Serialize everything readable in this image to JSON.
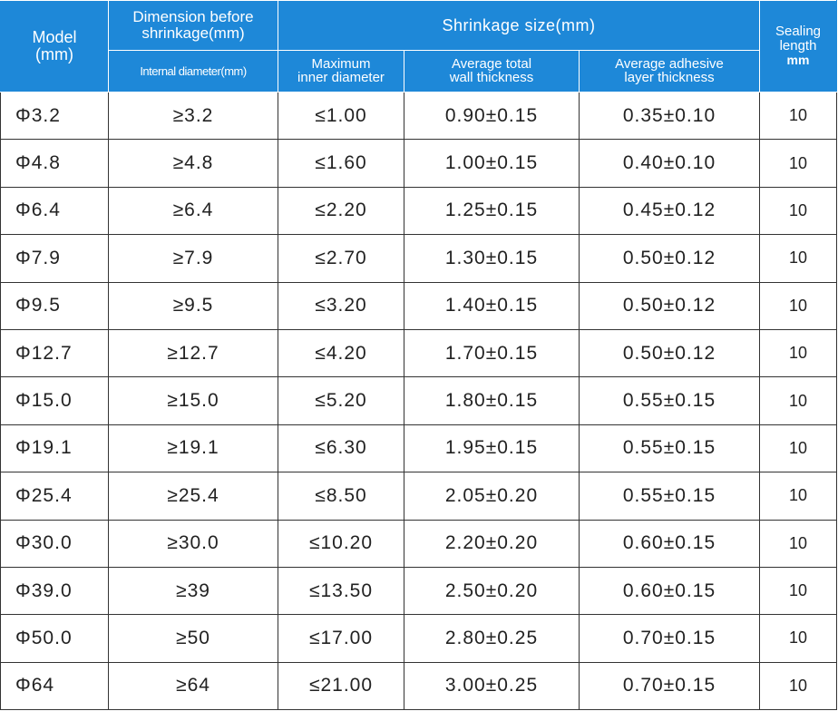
{
  "header": {
    "model": [
      "Model",
      "(mm)"
    ],
    "dimension_before": [
      "Dimension before",
      "shrinkage(mm)"
    ],
    "shrinkage_size": "Shrinkage size(mm)",
    "sealing_length": [
      "Sealing",
      "length"
    ],
    "sealing_unit": "mm",
    "internal_diameter": "Internal diameter(mm)",
    "max_inner_diameter": [
      "Maximum",
      "inner diameter"
    ],
    "avg_total_wall": [
      "Average total",
      "wall thickness"
    ],
    "avg_adhesive": [
      "Average adhesive",
      "layer thickness"
    ]
  },
  "rows": [
    {
      "model": "Φ3.2",
      "internal": "≥3.2",
      "max_inner": "≤1.00",
      "wall": "0.90±0.15",
      "adhesive": "0.35±0.10",
      "seal": "10"
    },
    {
      "model": "Φ4.8",
      "internal": "≥4.8",
      "max_inner": "≤1.60",
      "wall": "1.00±0.15",
      "adhesive": "0.40±0.10",
      "seal": "10"
    },
    {
      "model": "Φ6.4",
      "internal": "≥6.4",
      "max_inner": "≤2.20",
      "wall": "1.25±0.15",
      "adhesive": "0.45±0.12",
      "seal": "10"
    },
    {
      "model": "Φ7.9",
      "internal": "≥7.9",
      "max_inner": "≤2.70",
      "wall": "1.30±0.15",
      "adhesive": "0.50±0.12",
      "seal": "10"
    },
    {
      "model": "Φ9.5",
      "internal": "≥9.5",
      "max_inner": "≤3.20",
      "wall": "1.40±0.15",
      "adhesive": "0.50±0.12",
      "seal": "10"
    },
    {
      "model": "Φ12.7",
      "internal": "≥12.7",
      "max_inner": "≤4.20",
      "wall": "1.70±0.15",
      "adhesive": "0.50±0.12",
      "seal": "10"
    },
    {
      "model": "Φ15.0",
      "internal": "≥15.0",
      "max_inner": "≤5.20",
      "wall": "1.80±0.15",
      "adhesive": "0.55±0.15",
      "seal": "10"
    },
    {
      "model": "Φ19.1",
      "internal": "≥19.1",
      "max_inner": "≤6.30",
      "wall": "1.95±0.15",
      "adhesive": "0.55±0.15",
      "seal": "10"
    },
    {
      "model": "Φ25.4",
      "internal": "≥25.4",
      "max_inner": "≤8.50",
      "wall": "2.05±0.20",
      "adhesive": "0.55±0.15",
      "seal": "10"
    },
    {
      "model": "Φ30.0",
      "internal": "≥30.0",
      "max_inner": "≤10.20",
      "wall": "2.20±0.20",
      "adhesive": "0.60±0.15",
      "seal": "10"
    },
    {
      "model": "Φ39.0",
      "internal": "≥39",
      "max_inner": "≤13.50",
      "wall": "2.50±0.20",
      "adhesive": "0.60±0.15",
      "seal": "10"
    },
    {
      "model": "Φ50.0",
      "internal": "≥50",
      "max_inner": "≤17.00",
      "wall": "2.80±0.25",
      "adhesive": "0.70±0.15",
      "seal": "10"
    },
    {
      "model": "Φ64",
      "internal": "≥64",
      "max_inner": "≤21.00",
      "wall": "3.00±0.25",
      "adhesive": "0.70±0.15",
      "seal": "10"
    }
  ]
}
